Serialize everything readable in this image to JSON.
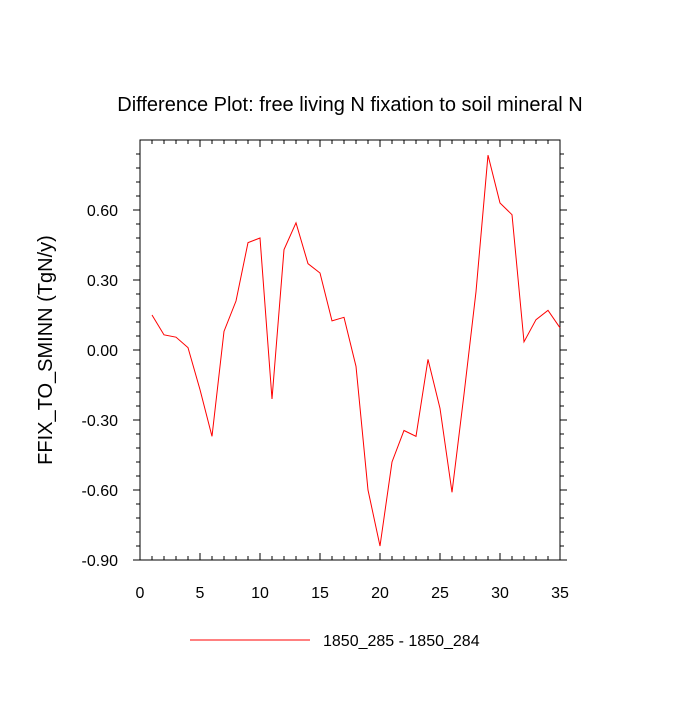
{
  "chart_data": {
    "type": "line",
    "title": "Difference Plot: free living N fixation to soil mineral N",
    "xlabel": "",
    "ylabel": "FFIX_TO_SMINN  (TgN/y)",
    "xlim": [
      0,
      35
    ],
    "ylim": [
      -0.9,
      0.9
    ],
    "x_ticks": [
      0,
      5,
      10,
      15,
      20,
      25,
      30,
      35
    ],
    "y_ticks": [
      -0.9,
      -0.6,
      -0.3,
      0.0,
      0.3,
      0.6
    ],
    "x_tick_labels": [
      "0",
      "5",
      "10",
      "15",
      "20",
      "25",
      "30",
      "35"
    ],
    "y_tick_labels": [
      "-0.90",
      "-0.60",
      "-0.30",
      "0.00",
      "0.30",
      "0.60"
    ],
    "grid": false,
    "legend_position": "bottom-center",
    "series": [
      {
        "name": "1850_285 - 1850_284",
        "color": "#ff0000",
        "x": [
          1,
          2,
          3,
          4,
          5,
          6,
          7,
          8,
          9,
          10,
          11,
          12,
          13,
          14,
          15,
          16,
          17,
          18,
          19,
          20,
          21,
          22,
          23,
          24,
          25,
          26,
          27,
          28,
          29,
          30,
          31,
          32,
          33,
          34,
          35
        ],
        "y": [
          0.15,
          0.065,
          0.055,
          0.01,
          -0.17,
          -0.37,
          0.08,
          0.21,
          0.46,
          0.48,
          -0.21,
          0.43,
          0.545,
          0.37,
          0.33,
          0.125,
          0.14,
          -0.07,
          -0.6,
          -0.84,
          -0.48,
          -0.345,
          -0.37,
          -0.04,
          -0.25,
          -0.61,
          -0.19,
          0.25,
          0.835,
          0.63,
          0.58,
          0.035,
          0.13,
          0.17,
          0.095
        ]
      }
    ]
  }
}
